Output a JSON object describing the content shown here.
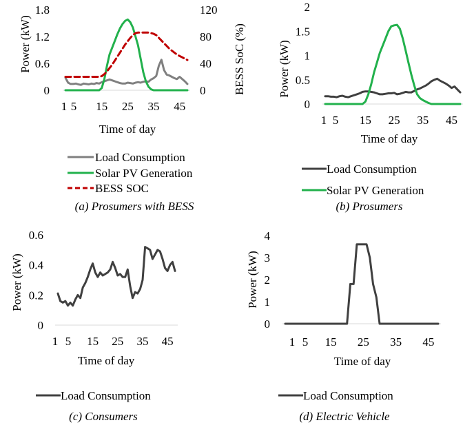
{
  "colors": {
    "load_gray": "#808080",
    "load_dark": "#404040",
    "solar_green": "#22B14C",
    "bess_red": "#C00000"
  },
  "chart_data": [
    {
      "id": "a",
      "type": "line",
      "caption": "(a) Prosumers with BESS",
      "xlabel": "Time of day",
      "ylabel": "Power (kW)",
      "y2label": "BESS SoC (%)",
      "xticks": [
        "1",
        "5",
        "15",
        "25",
        "35",
        "45"
      ],
      "xlim": [
        1,
        48
      ],
      "ylim": [
        0,
        1.8
      ],
      "yticks": [
        "0",
        "0.6",
        "1.2",
        "1.8"
      ],
      "y2lim": [
        0,
        120
      ],
      "y2ticks": [
        "0",
        "40",
        "80",
        "120"
      ],
      "legend_position": "bottom",
      "series": [
        {
          "name": "Load Consumption",
          "axis": "left",
          "color": "#808080",
          "dash": "none",
          "values": [
            0.28,
            0.17,
            0.14,
            0.14,
            0.15,
            0.13,
            0.12,
            0.15,
            0.14,
            0.13,
            0.15,
            0.14,
            0.16,
            0.15,
            0.18,
            0.2,
            0.22,
            0.24,
            0.22,
            0.2,
            0.18,
            0.16,
            0.15,
            0.15,
            0.17,
            0.16,
            0.15,
            0.17,
            0.18,
            0.17,
            0.19,
            0.2,
            0.19,
            0.24,
            0.27,
            0.32,
            0.55,
            0.68,
            0.45,
            0.35,
            0.33,
            0.3,
            0.27,
            0.25,
            0.3,
            0.25,
            0.2,
            0.14
          ]
        },
        {
          "name": "Solar PV Generation",
          "axis": "left",
          "color": "#22B14C",
          "dash": "none",
          "values": [
            0,
            0,
            0,
            0,
            0,
            0,
            0,
            0,
            0,
            0,
            0,
            0,
            0,
            0,
            0.05,
            0.25,
            0.55,
            0.8,
            0.95,
            1.1,
            1.25,
            1.38,
            1.48,
            1.55,
            1.58,
            1.52,
            1.4,
            1.2,
            1.0,
            0.7,
            0.4,
            0.2,
            0.08,
            0.02,
            0,
            0,
            0,
            0,
            0,
            0,
            0,
            0,
            0,
            0,
            0,
            0,
            0,
            0
          ]
        },
        {
          "name": "BESS SOC",
          "axis": "right",
          "color": "#C00000",
          "dash": "dashed",
          "values": [
            20,
            20,
            20,
            20,
            20,
            20,
            20,
            20,
            20,
            20,
            20,
            20,
            20,
            20,
            21,
            24,
            28,
            33,
            38,
            44,
            50,
            56,
            62,
            68,
            73,
            78,
            82,
            85,
            86,
            86,
            86,
            86,
            86,
            85,
            84,
            82,
            78,
            74,
            70,
            66,
            62,
            59,
            56,
            53,
            51,
            49,
            47,
            45
          ]
        }
      ]
    },
    {
      "id": "b",
      "type": "line",
      "caption": "(b) Prosumers",
      "xlabel": "Time of day",
      "ylabel": "Power (kW)",
      "xticks": [
        "1",
        "5",
        "15",
        "25",
        "35",
        "45"
      ],
      "xlim": [
        1,
        48
      ],
      "ylim": [
        0,
        2
      ],
      "yticks": [
        "0",
        "0.5",
        "1",
        "1.5",
        "2"
      ],
      "legend_position": "bottom",
      "series": [
        {
          "name": "Load Consumption",
          "color": "#404040",
          "dash": "none",
          "values": [
            0.16,
            0.16,
            0.15,
            0.15,
            0.14,
            0.16,
            0.17,
            0.15,
            0.14,
            0.16,
            0.18,
            0.2,
            0.22,
            0.25,
            0.26,
            0.26,
            0.25,
            0.24,
            0.22,
            0.2,
            0.2,
            0.21,
            0.22,
            0.22,
            0.23,
            0.2,
            0.21,
            0.23,
            0.25,
            0.24,
            0.24,
            0.27,
            0.3,
            0.32,
            0.35,
            0.38,
            0.42,
            0.47,
            0.5,
            0.52,
            0.48,
            0.45,
            0.42,
            0.38,
            0.33,
            0.36,
            0.3,
            0.24
          ]
        },
        {
          "name": "Solar PV Generation",
          "color": "#22B14C",
          "dash": "none",
          "values": [
            0,
            0,
            0,
            0,
            0,
            0,
            0,
            0,
            0,
            0,
            0,
            0,
            0,
            0,
            0.05,
            0.2,
            0.4,
            0.65,
            0.85,
            1.05,
            1.2,
            1.35,
            1.5,
            1.6,
            1.62,
            1.63,
            1.55,
            1.35,
            1.1,
            0.85,
            0.6,
            0.38,
            0.2,
            0.12,
            0.08,
            0.05,
            0.02,
            0,
            0,
            0,
            0,
            0,
            0,
            0,
            0,
            0,
            0,
            0
          ]
        }
      ]
    },
    {
      "id": "c",
      "type": "line",
      "caption": "(c) Consumers",
      "xlabel": "Time of day",
      "ylabel": "Power (kW)",
      "xticks": [
        "1",
        "5",
        "15",
        "25",
        "35",
        "45"
      ],
      "xlim": [
        1,
        48
      ],
      "ylim": [
        0,
        0.6
      ],
      "yticks": [
        "0",
        "0.2",
        "0.4",
        "0.6"
      ],
      "legend_position": "bottom",
      "series": [
        {
          "name": "Load Consumption",
          "color": "#404040",
          "dash": "none",
          "values": [
            0.21,
            0.16,
            0.15,
            0.16,
            0.13,
            0.15,
            0.13,
            0.17,
            0.2,
            0.18,
            0.25,
            0.28,
            0.32,
            0.37,
            0.41,
            0.35,
            0.32,
            0.35,
            0.33,
            0.34,
            0.35,
            0.37,
            0.42,
            0.38,
            0.33,
            0.34,
            0.32,
            0.32,
            0.37,
            0.26,
            0.18,
            0.22,
            0.21,
            0.24,
            0.3,
            0.52,
            0.51,
            0.5,
            0.44,
            0.47,
            0.5,
            0.49,
            0.44,
            0.38,
            0.36,
            0.4,
            0.42,
            0.36
          ]
        }
      ]
    },
    {
      "id": "d",
      "type": "line",
      "caption": "(d) Electric Vehicle",
      "xlabel": "Time of day",
      "ylabel": "Power (kW)",
      "xticks": [
        "1",
        "5",
        "15",
        "25",
        "35",
        "45"
      ],
      "xlim": [
        1,
        48
      ],
      "ylim": [
        0,
        4
      ],
      "yticks": [
        "0",
        "0.5",
        "1",
        "1.5",
        "2",
        "2.5",
        "3",
        "3.5",
        "4"
      ],
      "legend_position": "bottom",
      "series": [
        {
          "name": "Load Consumption",
          "color": "#404040",
          "dash": "none",
          "values": [
            0,
            0,
            0,
            0,
            0,
            0,
            0,
            0,
            0,
            0,
            0,
            0,
            0,
            0,
            0,
            0,
            0,
            0,
            0,
            0,
            1.8,
            1.8,
            3.6,
            3.6,
            3.6,
            3.6,
            3.0,
            1.8,
            1.2,
            0,
            0,
            0,
            0,
            0,
            0,
            0,
            0,
            0,
            0,
            0,
            0,
            0,
            0,
            0,
            0,
            0,
            0,
            0
          ]
        }
      ]
    }
  ]
}
